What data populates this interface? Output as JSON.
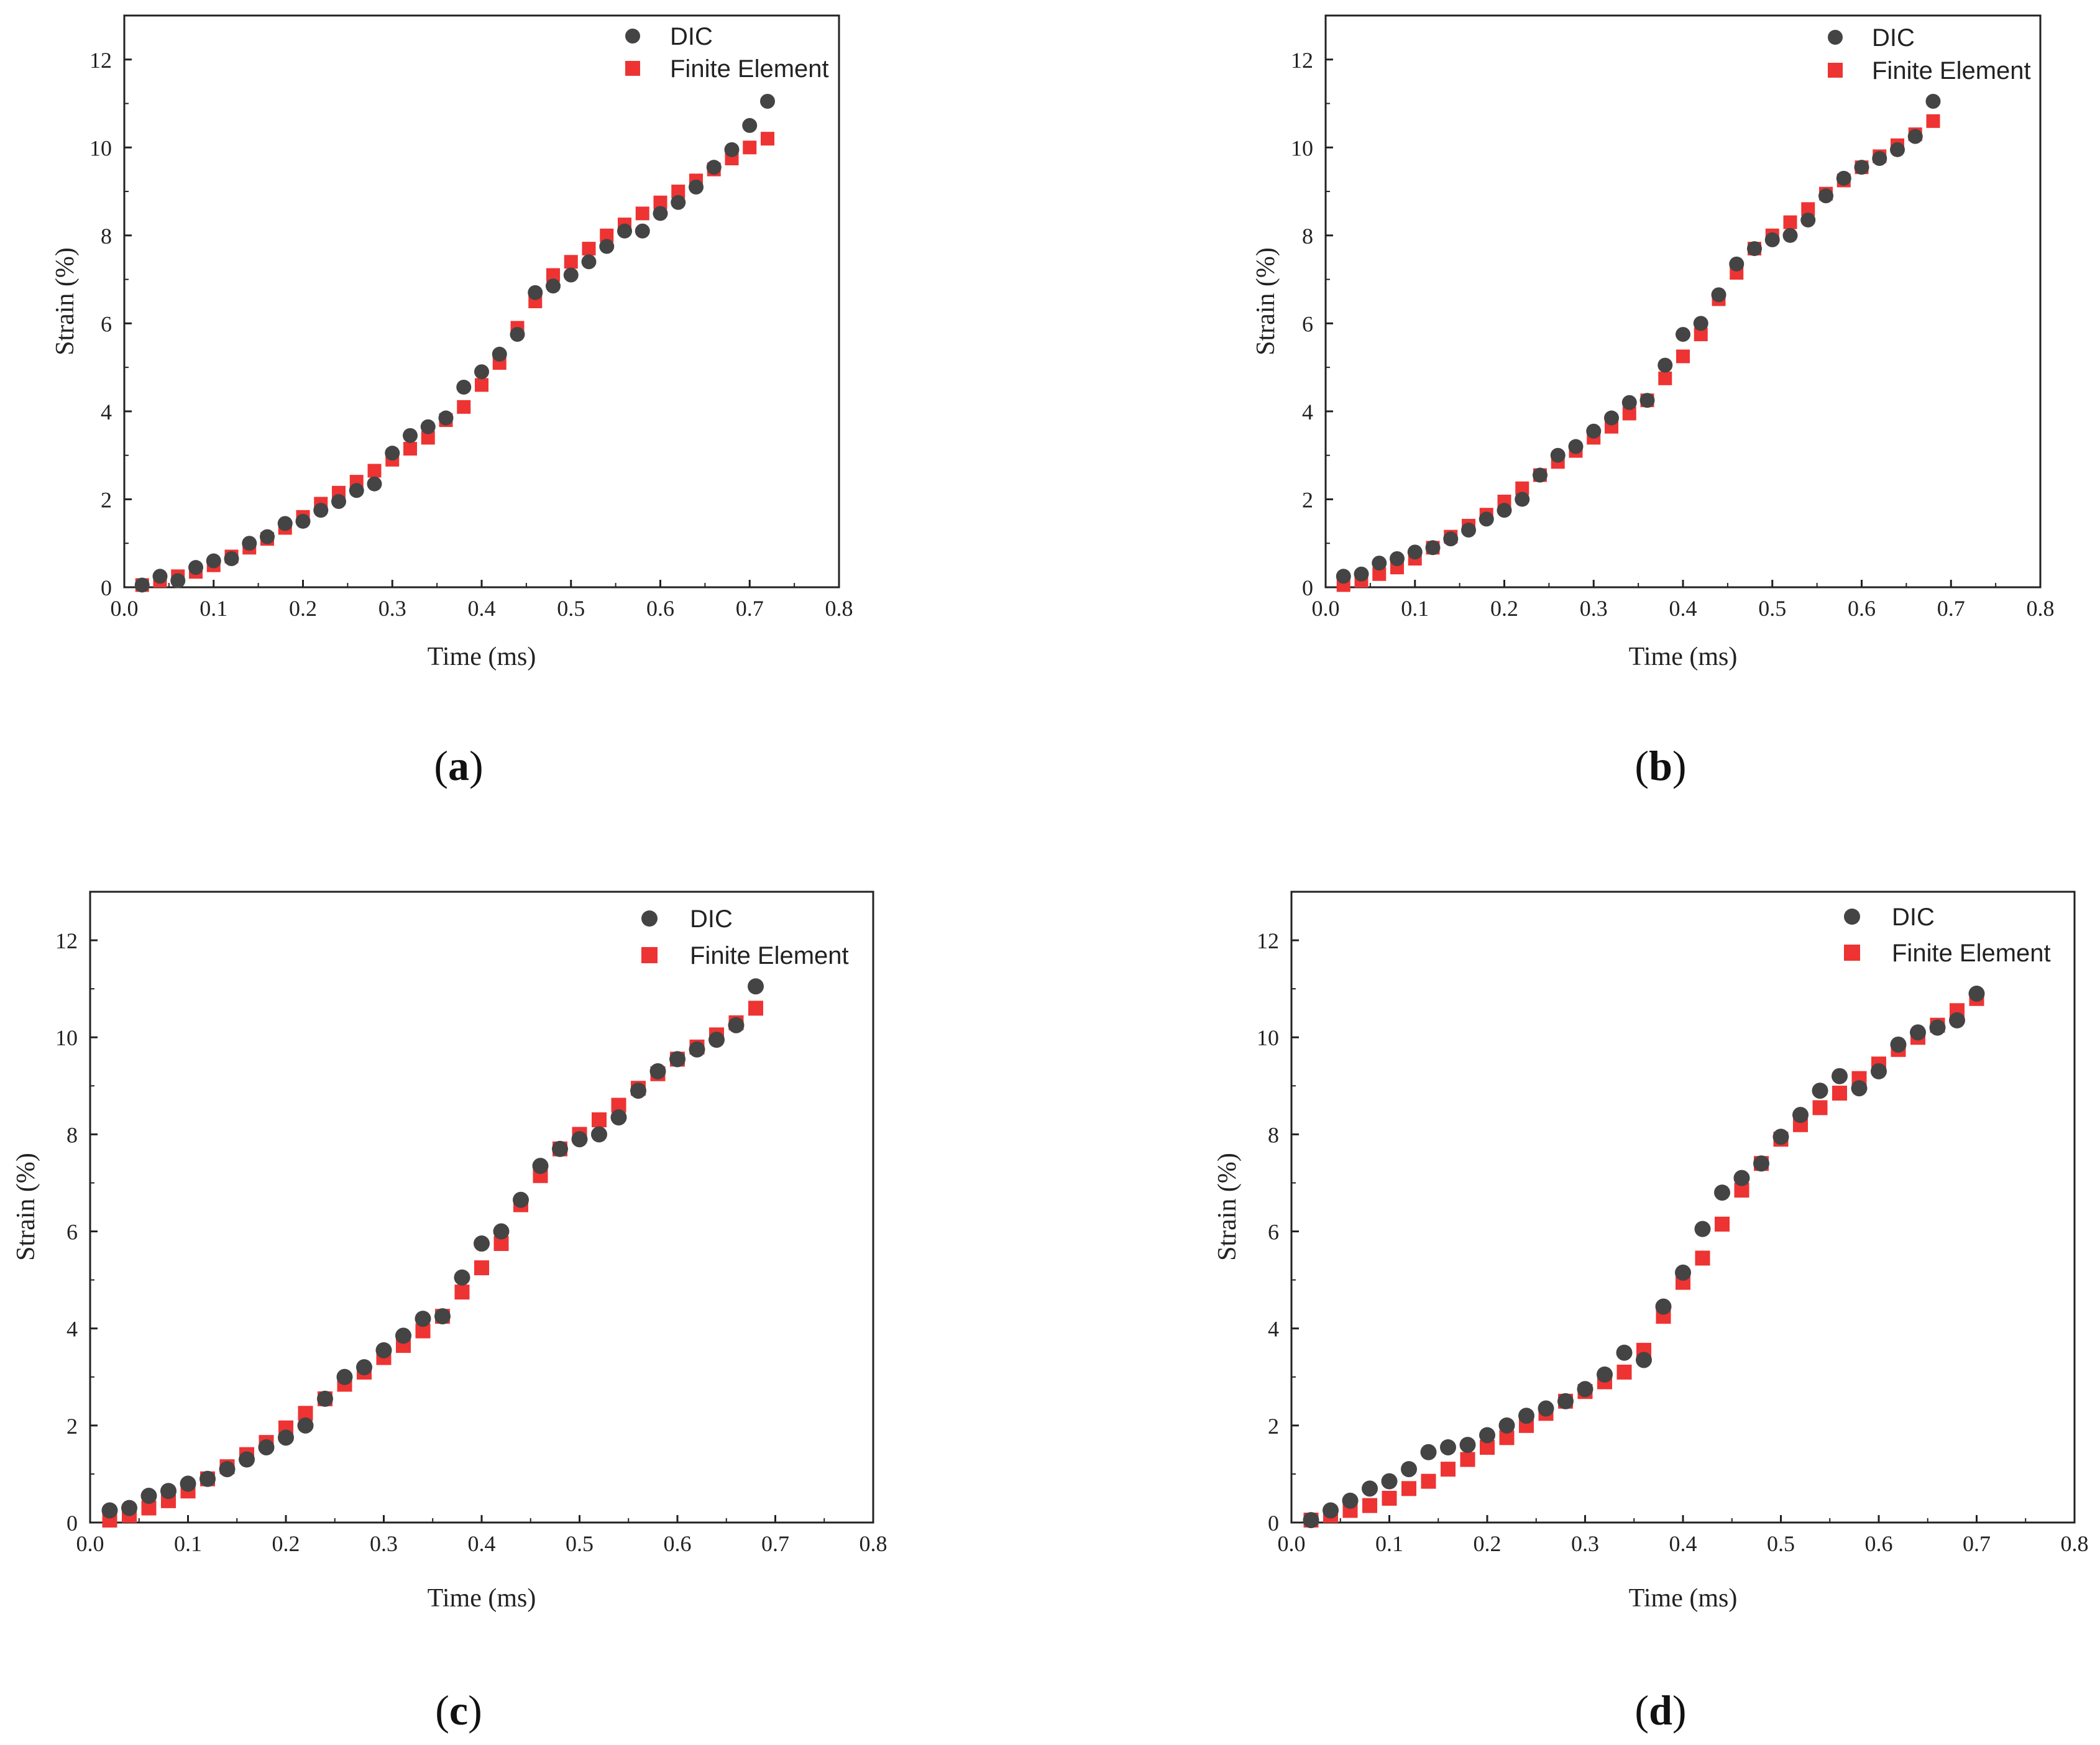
{
  "chart_data": [
    {
      "type": "scatter",
      "panel_label": "a",
      "xlabel": "Time (ms)",
      "ylabel": "Strain (%)",
      "xlim": [
        0.0,
        0.8
      ],
      "ylim": [
        0,
        13
      ],
      "xticks": [
        "0.0",
        "0.1",
        "0.2",
        "0.3",
        "0.4",
        "0.5",
        "0.6",
        "0.7",
        "0.8"
      ],
      "yticks": [
        "0",
        "2",
        "4",
        "6",
        "8",
        "10",
        "12"
      ],
      "legend_position": "top-right",
      "series": [
        {
          "name": "DIC",
          "marker": "circle",
          "color": "#444444",
          "x": [
            0.02,
            0.04,
            0.06,
            0.08,
            0.1,
            0.12,
            0.14,
            0.16,
            0.18,
            0.2,
            0.22,
            0.24,
            0.26,
            0.28,
            0.3,
            0.32,
            0.34,
            0.36,
            0.38,
            0.4,
            0.42,
            0.44,
            0.46,
            0.48,
            0.5,
            0.52,
            0.54,
            0.56,
            0.58,
            0.6,
            0.62,
            0.64,
            0.66,
            0.68,
            0.7,
            0.72
          ],
          "y": [
            0.05,
            0.25,
            0.15,
            0.45,
            0.6,
            0.65,
            1.0,
            1.15,
            1.45,
            1.5,
            1.75,
            1.95,
            2.2,
            2.35,
            3.05,
            3.45,
            3.65,
            3.85,
            4.55,
            4.9,
            5.3,
            5.75,
            6.7,
            6.85,
            7.1,
            7.4,
            7.75,
            8.1,
            8.1,
            8.5,
            8.75,
            9.1,
            9.55,
            9.95,
            10.5,
            11.05
          ]
        },
        {
          "name": "Finite Element",
          "marker": "square",
          "color": "#ee3333",
          "x": [
            0.02,
            0.04,
            0.06,
            0.08,
            0.1,
            0.12,
            0.14,
            0.16,
            0.18,
            0.2,
            0.22,
            0.24,
            0.26,
            0.28,
            0.3,
            0.32,
            0.34,
            0.36,
            0.38,
            0.4,
            0.42,
            0.44,
            0.46,
            0.48,
            0.5,
            0.52,
            0.54,
            0.56,
            0.58,
            0.6,
            0.62,
            0.64,
            0.66,
            0.68,
            0.7,
            0.72
          ],
          "y": [
            0.05,
            0.15,
            0.25,
            0.35,
            0.5,
            0.7,
            0.9,
            1.1,
            1.35,
            1.6,
            1.9,
            2.15,
            2.4,
            2.65,
            2.9,
            3.15,
            3.4,
            3.8,
            4.1,
            4.6,
            5.1,
            5.9,
            6.5,
            7.1,
            7.4,
            7.7,
            8.0,
            8.25,
            8.5,
            8.75,
            9.0,
            9.25,
            9.5,
            9.75,
            10.0,
            10.2
          ]
        }
      ]
    },
    {
      "type": "scatter",
      "panel_label": "b",
      "xlabel": "Time (ms)",
      "ylabel": "Strain (%)",
      "xlim": [
        0.0,
        0.8
      ],
      "ylim": [
        0,
        13
      ],
      "xticks": [
        "0.0",
        "0.1",
        "0.2",
        "0.3",
        "0.4",
        "0.5",
        "0.6",
        "0.7",
        "0.8"
      ],
      "yticks": [
        "0",
        "2",
        "4",
        "6",
        "8",
        "10",
        "12"
      ],
      "legend_position": "top-right",
      "series": [
        {
          "name": "DIC",
          "marker": "circle",
          "color": "#444444",
          "x": [
            0.02,
            0.04,
            0.06,
            0.08,
            0.1,
            0.12,
            0.14,
            0.16,
            0.18,
            0.2,
            0.22,
            0.24,
            0.26,
            0.28,
            0.3,
            0.32,
            0.34,
            0.36,
            0.38,
            0.4,
            0.42,
            0.44,
            0.46,
            0.48,
            0.5,
            0.52,
            0.54,
            0.56,
            0.58,
            0.6,
            0.62,
            0.64,
            0.66,
            0.68
          ],
          "y": [
            0.25,
            0.3,
            0.55,
            0.65,
            0.8,
            0.9,
            1.1,
            1.3,
            1.55,
            1.75,
            2.0,
            2.55,
            3.0,
            3.2,
            3.55,
            3.85,
            4.2,
            4.25,
            5.05,
            5.75,
            6.0,
            6.65,
            7.35,
            7.7,
            7.9,
            8.0,
            8.35,
            8.9,
            9.3,
            9.55,
            9.75,
            9.95,
            10.25,
            11.05
          ]
        },
        {
          "name": "Finite Element",
          "marker": "square",
          "color": "#ee3333",
          "x": [
            0.02,
            0.04,
            0.06,
            0.08,
            0.1,
            0.12,
            0.14,
            0.16,
            0.18,
            0.2,
            0.22,
            0.24,
            0.26,
            0.28,
            0.3,
            0.32,
            0.34,
            0.36,
            0.38,
            0.4,
            0.42,
            0.44,
            0.46,
            0.48,
            0.5,
            0.52,
            0.54,
            0.56,
            0.58,
            0.6,
            0.62,
            0.64,
            0.66,
            0.68
          ],
          "y": [
            0.05,
            0.15,
            0.3,
            0.45,
            0.65,
            0.9,
            1.15,
            1.4,
            1.65,
            1.95,
            2.25,
            2.55,
            2.85,
            3.1,
            3.4,
            3.65,
            3.95,
            4.25,
            4.75,
            5.25,
            5.75,
            6.55,
            7.15,
            7.7,
            8.0,
            8.3,
            8.6,
            8.95,
            9.25,
            9.55,
            9.8,
            10.05,
            10.3,
            10.6
          ]
        }
      ]
    },
    {
      "type": "scatter",
      "panel_label": "c",
      "xlabel": "Time (ms)",
      "ylabel": "Strain (%)",
      "xlim": [
        0.0,
        0.8
      ],
      "ylim": [
        0,
        13
      ],
      "xticks": [
        "0.0",
        "0.1",
        "0.2",
        "0.3",
        "0.4",
        "0.5",
        "0.6",
        "0.7",
        "0.8"
      ],
      "yticks": [
        "0",
        "2",
        "4",
        "6",
        "8",
        "10",
        "12"
      ],
      "legend_position": "top-right",
      "series": [
        {
          "name": "DIC",
          "marker": "circle",
          "color": "#444444",
          "x": [
            0.02,
            0.04,
            0.06,
            0.08,
            0.1,
            0.12,
            0.14,
            0.16,
            0.18,
            0.2,
            0.22,
            0.24,
            0.26,
            0.28,
            0.3,
            0.32,
            0.34,
            0.36,
            0.38,
            0.4,
            0.42,
            0.44,
            0.46,
            0.48,
            0.5,
            0.52,
            0.54,
            0.56,
            0.58,
            0.6,
            0.62,
            0.64,
            0.66,
            0.68
          ],
          "y": [
            0.25,
            0.3,
            0.55,
            0.65,
            0.8,
            0.9,
            1.1,
            1.3,
            1.55,
            1.75,
            2.0,
            2.55,
            3.0,
            3.2,
            3.55,
            3.85,
            4.2,
            4.25,
            5.05,
            5.75,
            6.0,
            6.65,
            7.35,
            7.7,
            7.9,
            8.0,
            8.35,
            8.9,
            9.3,
            9.55,
            9.75,
            9.95,
            10.25,
            11.05
          ]
        },
        {
          "name": "Finite Element",
          "marker": "square",
          "color": "#ee3333",
          "x": [
            0.02,
            0.04,
            0.06,
            0.08,
            0.1,
            0.12,
            0.14,
            0.16,
            0.18,
            0.2,
            0.22,
            0.24,
            0.26,
            0.28,
            0.3,
            0.32,
            0.34,
            0.36,
            0.38,
            0.4,
            0.42,
            0.44,
            0.46,
            0.48,
            0.5,
            0.52,
            0.54,
            0.56,
            0.58,
            0.6,
            0.62,
            0.64,
            0.66,
            0.68
          ],
          "y": [
            0.05,
            0.15,
            0.3,
            0.45,
            0.65,
            0.9,
            1.15,
            1.4,
            1.65,
            1.95,
            2.25,
            2.55,
            2.85,
            3.1,
            3.4,
            3.65,
            3.95,
            4.25,
            4.75,
            5.25,
            5.75,
            6.55,
            7.15,
            7.7,
            8.0,
            8.3,
            8.6,
            8.95,
            9.25,
            9.55,
            9.8,
            10.05,
            10.3,
            10.6
          ]
        }
      ]
    },
    {
      "type": "scatter",
      "panel_label": "d",
      "xlabel": "Time (ms)",
      "ylabel": "Strain (%)",
      "xlim": [
        0.0,
        0.8
      ],
      "ylim": [
        0,
        13
      ],
      "xticks": [
        "0.0",
        "0.1",
        "0.2",
        "0.3",
        "0.4",
        "0.5",
        "0.6",
        "0.7",
        "0.8"
      ],
      "yticks": [
        "0",
        "2",
        "4",
        "6",
        "8",
        "10",
        "12"
      ],
      "legend_position": "top-right",
      "series": [
        {
          "name": "DIC",
          "marker": "circle",
          "color": "#444444",
          "x": [
            0.02,
            0.04,
            0.06,
            0.08,
            0.1,
            0.12,
            0.14,
            0.16,
            0.18,
            0.2,
            0.22,
            0.24,
            0.26,
            0.28,
            0.3,
            0.32,
            0.34,
            0.36,
            0.38,
            0.4,
            0.42,
            0.44,
            0.46,
            0.48,
            0.5,
            0.52,
            0.54,
            0.56,
            0.58,
            0.6,
            0.62,
            0.64,
            0.66,
            0.68,
            0.7
          ],
          "y": [
            0.05,
            0.25,
            0.45,
            0.7,
            0.85,
            1.1,
            1.45,
            1.55,
            1.6,
            1.8,
            2.0,
            2.2,
            2.35,
            2.5,
            2.75,
            3.05,
            3.5,
            3.35,
            4.45,
            5.15,
            6.05,
            6.8,
            7.1,
            7.4,
            7.95,
            8.4,
            8.9,
            9.2,
            8.95,
            9.3,
            9.85,
            10.1,
            10.2,
            10.35,
            10.9
          ]
        },
        {
          "name": "Finite Element",
          "marker": "square",
          "color": "#ee3333",
          "x": [
            0.02,
            0.04,
            0.06,
            0.08,
            0.1,
            0.12,
            0.14,
            0.16,
            0.18,
            0.2,
            0.22,
            0.24,
            0.26,
            0.28,
            0.3,
            0.32,
            0.34,
            0.36,
            0.38,
            0.4,
            0.42,
            0.44,
            0.46,
            0.48,
            0.5,
            0.52,
            0.54,
            0.56,
            0.58,
            0.6,
            0.62,
            0.64,
            0.66,
            0.68,
            0.7
          ],
          "y": [
            0.05,
            0.15,
            0.25,
            0.35,
            0.5,
            0.7,
            0.85,
            1.1,
            1.3,
            1.55,
            1.75,
            2.0,
            2.25,
            2.5,
            2.7,
            2.9,
            3.1,
            3.55,
            4.25,
            4.95,
            5.45,
            6.15,
            6.85,
            7.4,
            7.9,
            8.2,
            8.55,
            8.85,
            9.15,
            9.45,
            9.75,
            10.0,
            10.25,
            10.55,
            10.8
          ]
        }
      ]
    }
  ]
}
